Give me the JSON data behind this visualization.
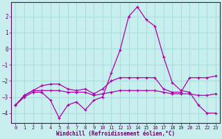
{
  "background_color": "#c8eeee",
  "grid_color": "#aadddd",
  "line_color": "#aa00aa",
  "xlabel": "Windchill (Refroidissement éolien,°C)",
  "xlabel_color": "#660066",
  "tick_color": "#660066",
  "xlim": [
    -0.5,
    23.5
  ],
  "ylim": [
    -4.6,
    2.9
  ],
  "yticks": [
    -4,
    -3,
    -2,
    -1,
    0,
    1,
    2
  ],
  "xticks": [
    0,
    1,
    2,
    3,
    4,
    5,
    6,
    7,
    8,
    9,
    10,
    11,
    12,
    13,
    14,
    15,
    16,
    17,
    18,
    19,
    20,
    21,
    22,
    23
  ],
  "line1_x": [
    0,
    1,
    2,
    3,
    4,
    5,
    6,
    7,
    8,
    9,
    10,
    11,
    12,
    13,
    14,
    15,
    16,
    17,
    18,
    19,
    20,
    21,
    22,
    23
  ],
  "line1_y": [
    -3.5,
    -3.0,
    -2.7,
    -2.7,
    -3.2,
    -4.3,
    -3.5,
    -3.3,
    -3.8,
    -3.2,
    -3.0,
    -1.5,
    -0.1,
    2.0,
    2.6,
    1.8,
    1.4,
    -0.5,
    -2.1,
    -2.6,
    -2.7,
    -3.5,
    -4.0,
    -4.0
  ],
  "line2_x": [
    0,
    1,
    2,
    3,
    4,
    5,
    6,
    7,
    8,
    9,
    10,
    11,
    12,
    13,
    14,
    15,
    16,
    17,
    18,
    19,
    20,
    21,
    22,
    23
  ],
  "line2_y": [
    -3.5,
    -2.9,
    -2.6,
    -2.3,
    -2.2,
    -2.2,
    -2.5,
    -2.6,
    -2.5,
    -2.8,
    -2.5,
    -2.0,
    -1.8,
    -1.8,
    -1.8,
    -1.8,
    -1.8,
    -2.5,
    -2.7,
    -2.7,
    -1.8,
    -1.8,
    -1.8,
    -1.7
  ],
  "line3_x": [
    0,
    1,
    2,
    3,
    4,
    5,
    6,
    7,
    8,
    9,
    10,
    11,
    12,
    13,
    14,
    15,
    16,
    17,
    18,
    19,
    20,
    21,
    22,
    23
  ],
  "line3_y": [
    -3.5,
    -2.9,
    -2.6,
    -2.6,
    -2.6,
    -2.6,
    -2.7,
    -2.7,
    -2.7,
    -2.9,
    -2.8,
    -2.7,
    -2.6,
    -2.6,
    -2.6,
    -2.6,
    -2.6,
    -2.7,
    -2.8,
    -2.8,
    -2.8,
    -2.9,
    -2.9,
    -2.8
  ]
}
